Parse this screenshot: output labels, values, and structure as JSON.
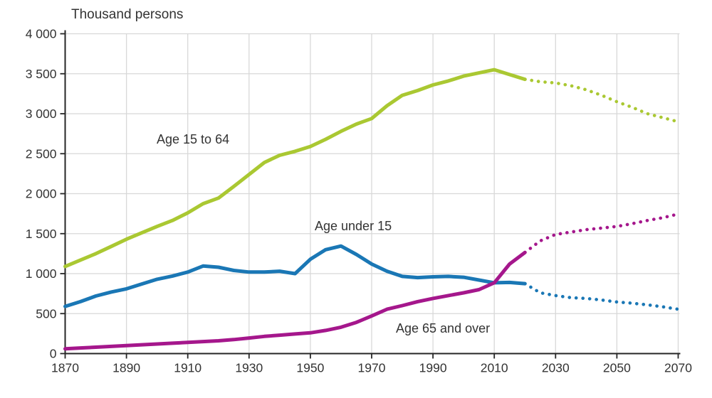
{
  "colors": {
    "age_15_64": "#aac832",
    "age_under_15": "#1a77b5",
    "age_65_over": "#a5178c",
    "grid": "#d8d8d8",
    "axis": "#262626",
    "text": "#333333"
  },
  "chart_data": {
    "type": "line",
    "title": "Thousand persons",
    "ylabel": "Thousand persons",
    "xlim": [
      1870,
      2070
    ],
    "ylim": [
      0,
      4000
    ],
    "grid": true,
    "legend_position": "inline-annotations",
    "note": "Lines are solid for history (1870-2020) and dotted for projection (2020-2070)",
    "x": [
      1870,
      1875,
      1880,
      1885,
      1890,
      1895,
      1900,
      1905,
      1910,
      1915,
      1920,
      1925,
      1930,
      1935,
      1940,
      1945,
      1950,
      1955,
      1960,
      1965,
      1970,
      1975,
      1980,
      1985,
      1990,
      1995,
      2000,
      2005,
      2010,
      2015,
      2020,
      2025,
      2030,
      2035,
      2040,
      2045,
      2050,
      2055,
      2060,
      2065,
      2070
    ],
    "solid_until": 2020,
    "series": [
      {
        "name": "Age 15 to 64",
        "color_key": "age_15_64",
        "values": [
          1090,
          1170,
          1250,
          1340,
          1430,
          1510,
          1590,
          1665,
          1760,
          1875,
          1945,
          2090,
          2240,
          2390,
          2480,
          2530,
          2590,
          2680,
          2780,
          2870,
          2940,
          3100,
          3230,
          3290,
          3360,
          3410,
          3470,
          3510,
          3550,
          3490,
          3430,
          3400,
          3385,
          3350,
          3300,
          3230,
          3150,
          3080,
          3000,
          2950,
          2900
        ]
      },
      {
        "name": "Age under 15",
        "color_key": "age_under_15",
        "values": [
          590,
          650,
          720,
          770,
          810,
          870,
          930,
          970,
          1020,
          1095,
          1080,
          1040,
          1020,
          1020,
          1030,
          1000,
          1180,
          1300,
          1345,
          1240,
          1120,
          1030,
          965,
          950,
          960,
          965,
          955,
          920,
          885,
          890,
          875,
          760,
          725,
          700,
          690,
          670,
          645,
          630,
          610,
          585,
          555
        ]
      },
      {
        "name": "Age 65 and over",
        "color_key": "age_65_over",
        "values": [
          60,
          70,
          80,
          90,
          100,
          110,
          120,
          130,
          140,
          150,
          160,
          175,
          195,
          215,
          230,
          245,
          260,
          290,
          330,
          390,
          470,
          555,
          600,
          650,
          690,
          725,
          760,
          800,
          885,
          1120,
          1265,
          1410,
          1490,
          1520,
          1550,
          1570,
          1590,
          1625,
          1665,
          1700,
          1745
        ]
      }
    ],
    "x_ticks": [
      1870,
      1890,
      1910,
      1930,
      1950,
      1970,
      1990,
      2010,
      2030,
      2050,
      2070
    ],
    "y_ticks": [
      0,
      500,
      1000,
      1500,
      2000,
      2500,
      3000,
      3500,
      4000
    ],
    "y_tick_labels": [
      "0",
      "500",
      "1 000",
      "1 500",
      "2 000",
      "2 500",
      "3 000",
      "3 500",
      "4 000"
    ]
  }
}
